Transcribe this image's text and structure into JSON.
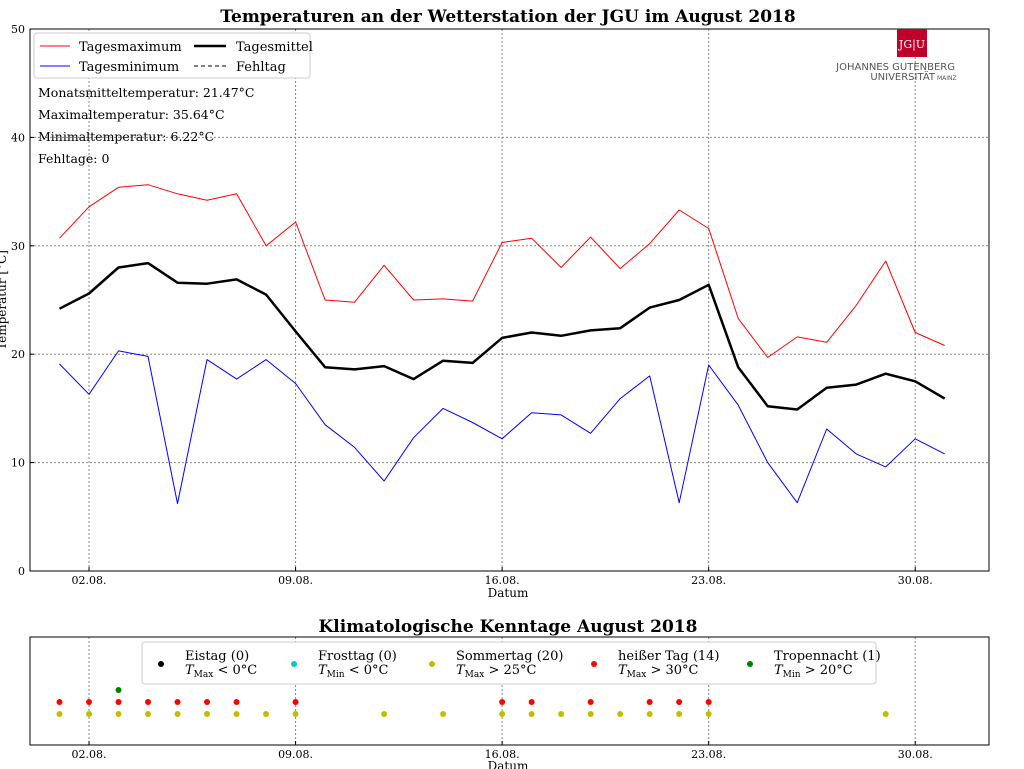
{
  "chart_data": [
    {
      "type": "line",
      "title": "Temperaturen an der Wetterstation der JGU im August 2018",
      "xlabel": "Datum",
      "ylabel": "Temperatur [°C]",
      "xticks": [
        "02.08.",
        "09.08.",
        "16.08.",
        "23.08.",
        "30.08."
      ],
      "yticks": [
        "0",
        "10",
        "20",
        "30",
        "40",
        "50"
      ],
      "ylim": [
        0,
        50
      ],
      "xlim": [
        0.0,
        32.5
      ],
      "grid": true,
      "legend_position": "top-left",
      "x": [
        1,
        2,
        3,
        4,
        5,
        6,
        7,
        8,
        9,
        10,
        11,
        12,
        13,
        14,
        15,
        16,
        17,
        18,
        19,
        20,
        21,
        22,
        23,
        24,
        25,
        26,
        27,
        28,
        29,
        30,
        31
      ],
      "series": [
        {
          "name": "Tagesmaximum",
          "color": "#ff0000",
          "values": [
            30.7,
            33.6,
            35.4,
            35.64,
            34.8,
            34.2,
            34.8,
            30.0,
            32.2,
            25.0,
            24.8,
            28.2,
            25.0,
            25.1,
            24.9,
            30.3,
            30.7,
            28.0,
            30.8,
            27.9,
            30.2,
            33.3,
            31.6,
            23.3,
            19.7,
            21.6,
            21.1,
            24.5,
            28.6,
            22.0,
            20.8
          ]
        },
        {
          "name": "Tagesminimum",
          "color": "#0000ff",
          "values": [
            19.1,
            16.3,
            20.3,
            19.8,
            6.22,
            19.5,
            17.7,
            19.5,
            17.3,
            13.5,
            11.4,
            8.3,
            12.3,
            15.0,
            13.7,
            12.2,
            14.6,
            14.4,
            12.7,
            15.9,
            18.0,
            6.3,
            19.0,
            15.3,
            10.0,
            6.3,
            13.1,
            10.8,
            9.6,
            12.2,
            10.8
          ]
        },
        {
          "name": "Tagesmittel",
          "color": "#000000",
          "values": [
            24.2,
            25.6,
            28.0,
            28.4,
            26.6,
            26.5,
            26.9,
            25.5,
            22.1,
            18.8,
            18.6,
            18.9,
            17.7,
            19.4,
            19.2,
            21.5,
            22.0,
            21.7,
            22.2,
            22.4,
            24.3,
            25.0,
            26.4,
            18.8,
            15.2,
            14.9,
            16.9,
            17.2,
            18.2,
            17.5,
            15.9
          ]
        }
      ],
      "legend": [
        {
          "label": "Tagesmaximum",
          "color": "#ff0000",
          "style": "solid-thin"
        },
        {
          "label": "Tagesmittel",
          "color": "#000000",
          "style": "solid-thick"
        },
        {
          "label": "Tagesminimum",
          "color": "#0000ff",
          "style": "solid-thin"
        },
        {
          "label": "Fehltag",
          "color": "#000000",
          "style": "dashed"
        }
      ],
      "annotations": [
        "Monatsmitteltemperatur: 21.47°C",
        "Maximaltemperatur: 35.64°C",
        "Minimaltemperatur: 6.22°C",
        "Fehltage: 0"
      ]
    },
    {
      "type": "scatter",
      "title": "Klimatologische Kenntage August 2018",
      "xlabel": "Datum",
      "xticks": [
        "02.08.",
        "09.08.",
        "16.08.",
        "23.08.",
        "30.08."
      ],
      "xlim": [
        0.0,
        32.5
      ],
      "grid": true,
      "legend_position": "top-center",
      "rows": [
        {
          "name": "Eistag",
          "count": 0,
          "condition": "T_Max < 0°C",
          "color": "#000000",
          "days": []
        },
        {
          "name": "Frosttag",
          "count": 0,
          "condition": "T_Min < 0°C",
          "color": "#00cccc",
          "days": []
        },
        {
          "name": "Sommertag",
          "count": 20,
          "condition": "T_Max > 25°C",
          "color": "#bfbf00",
          "days": [
            1,
            2,
            3,
            4,
            5,
            6,
            7,
            8,
            9,
            12,
            14,
            16,
            17,
            18,
            19,
            20,
            21,
            22,
            23,
            29
          ]
        },
        {
          "name": "heißer Tag",
          "count": 14,
          "condition": "T_Max > 30°C",
          "color": "#ff0000",
          "days": [
            1,
            2,
            3,
            4,
            5,
            6,
            7,
            9,
            16,
            17,
            19,
            21,
            22,
            23
          ]
        },
        {
          "name": "Tropennacht",
          "count": 1,
          "condition": "T_Min > 20°C",
          "color": "#007f00",
          "days": [
            3
          ]
        }
      ],
      "legend": [
        {
          "label": "Eistag (0)",
          "sub": "T",
          "subscript": "Max",
          "tail": " < 0°C",
          "color": "#000000"
        },
        {
          "label": "Frosttag (0)",
          "sub": "T",
          "subscript": "Min",
          "tail": " < 0°C",
          "color": "#00cccc"
        },
        {
          "label": "Sommertag (20)",
          "sub": "T",
          "subscript": "Max",
          "tail": " > 25°C",
          "color": "#bfbf00"
        },
        {
          "label": "heißer Tag (14)",
          "sub": "T",
          "subscript": "Max",
          "tail": " > 30°C",
          "color": "#ff0000"
        },
        {
          "label": "Tropennacht (1)",
          "sub": "T",
          "subscript": "Min",
          "tail": " > 20°C",
          "color": "#007f00"
        }
      ]
    }
  ],
  "logo": {
    "mark": "JG|U",
    "line1": "JOHANNES GUTENBERG",
    "line2": "UNIVERSITÄT",
    "line3": "MAINZ",
    "color": "#c1002a"
  }
}
